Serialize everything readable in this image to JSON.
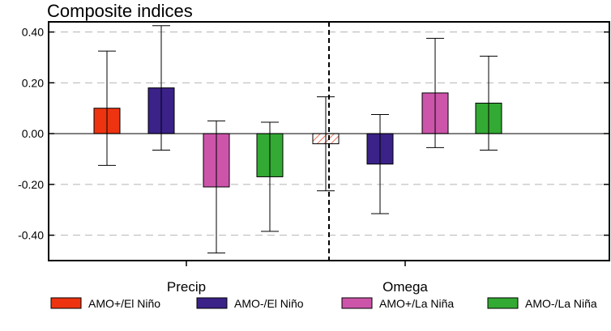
{
  "chart_data": {
    "type": "bar",
    "title": "Composite indices",
    "xlabel": "",
    "ylabel": "",
    "ylim": [
      -0.5,
      0.44
    ],
    "yticks": [
      -0.4,
      -0.2,
      0.0,
      0.2,
      0.4
    ],
    "ytick_labels": [
      "-0.40",
      "-0.20",
      "0.00",
      "0.20",
      "0.40"
    ],
    "grid": "horizontal dashed",
    "legend_position": "bottom",
    "groups": [
      "Precip",
      "Omega"
    ],
    "series": [
      {
        "name": "AMO+/El Niño",
        "color": "#ee3311",
        "values": [
          0.1,
          -0.04
        ],
        "error_low": [
          -0.125,
          -0.225
        ],
        "error_high": [
          0.325,
          0.145
        ],
        "hatched_when_negative": true
      },
      {
        "name": "AMO-/El Niño",
        "color": "#3a2288",
        "values": [
          0.18,
          -0.12
        ],
        "error_low": [
          -0.065,
          -0.315
        ],
        "error_high": [
          0.425,
          0.075
        ]
      },
      {
        "name": "AMO+/La Niña",
        "color": "#cc55aa",
        "values": [
          -0.21,
          0.16
        ],
        "error_low": [
          -0.47,
          -0.055
        ],
        "error_high": [
          0.05,
          0.375
        ]
      },
      {
        "name": "AMO-/La Niña",
        "color": "#33aa33",
        "values": [
          -0.17,
          0.12
        ],
        "error_low": [
          -0.385,
          -0.065
        ],
        "error_high": [
          0.045,
          0.305
        ]
      }
    ]
  }
}
